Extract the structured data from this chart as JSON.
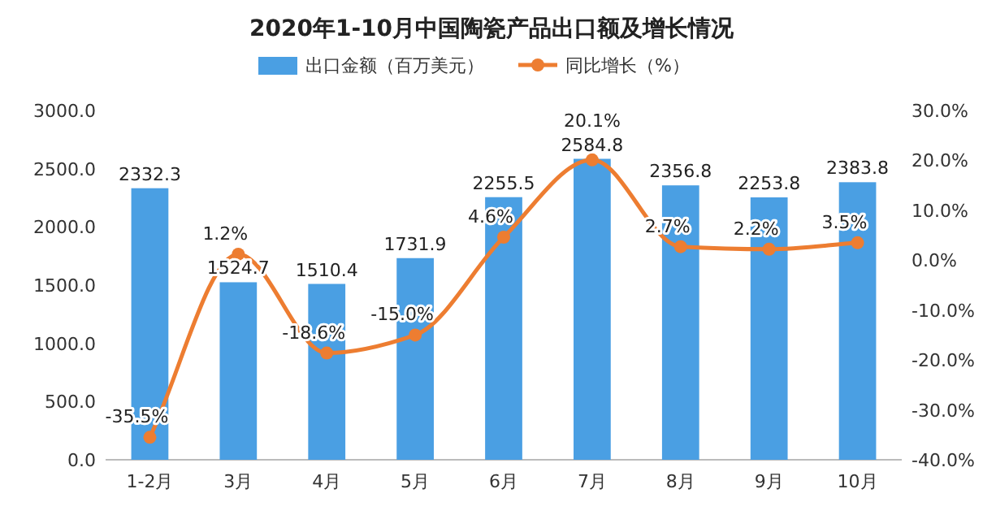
{
  "chart_data": {
    "type": "bar",
    "title": "2020年1-10月中国陶瓷产品出口额及增长情况",
    "categories": [
      "1-2月",
      "3月",
      "4月",
      "5月",
      "6月",
      "7月",
      "8月",
      "9月",
      "10月"
    ],
    "series": [
      {
        "name": "出口金额（百万美元）",
        "type": "bar",
        "color": "#4a9fe3",
        "values": [
          2332.3,
          1524.7,
          1510.4,
          1731.9,
          2255.5,
          2584.8,
          2356.8,
          2253.8,
          2383.8
        ],
        "value_labels": [
          "2332.3",
          "1524.7",
          "1510.4",
          "1731.9",
          "2255.5",
          "2584.8",
          "2356.8",
          "2253.8",
          "2383.8"
        ]
      },
      {
        "name": "同比增长（%）",
        "type": "line",
        "axis": "y2",
        "color": "#ed7d31",
        "marker": "circle",
        "values": [
          -35.5,
          1.2,
          -18.6,
          -15.0,
          4.6,
          20.1,
          2.7,
          2.2,
          3.5
        ],
        "value_labels": [
          "-35.5%",
          "1.2%",
          "-18.6%",
          "-15.0%",
          "4.6%",
          "20.1%",
          "2.7%",
          "2.2%",
          "3.5%"
        ]
      }
    ],
    "ylim": [
      0,
      3000
    ],
    "yticks": [
      {
        "value": 0,
        "label": "0.0"
      },
      {
        "value": 500,
        "label": "500.0"
      },
      {
        "value": 1000,
        "label": "1000.0"
      },
      {
        "value": 1500,
        "label": "1500.0"
      },
      {
        "value": 2000,
        "label": "2000.0"
      },
      {
        "value": 2500,
        "label": "2500.0"
      },
      {
        "value": 3000,
        "label": "3000.0"
      }
    ],
    "y2lim": [
      -40,
      30
    ],
    "y2ticks": [
      {
        "value": -40,
        "label": "-40.0%"
      },
      {
        "value": -30,
        "label": "-30.0%"
      },
      {
        "value": -20,
        "label": "-20.0%"
      },
      {
        "value": -10,
        "label": "-10.0%"
      },
      {
        "value": 0,
        "label": "0.0%"
      },
      {
        "value": 10,
        "label": "10.0%"
      },
      {
        "value": 20,
        "label": "20.0%"
      },
      {
        "value": 30,
        "label": "30.0%"
      }
    ],
    "legend": "top",
    "grid": false
  }
}
